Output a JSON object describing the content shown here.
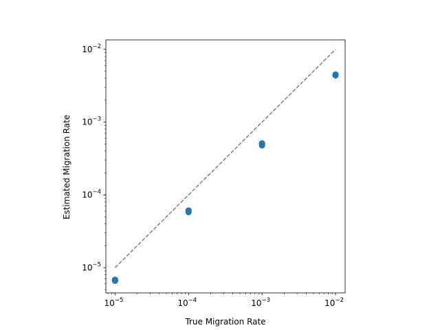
{
  "chart_data": {
    "type": "scatter",
    "title": "",
    "xlabel": "True Migration Rate",
    "ylabel": "Estimated Migration Rate",
    "xscale": "log",
    "yscale": "log",
    "xlim": [
      7.5e-06,
      0.0135
    ],
    "ylim": [
      4.5e-06,
      0.0135
    ],
    "grid": false,
    "legend": "none",
    "x_ticks": [
      {
        "value": 1e-05,
        "base": "10",
        "exp": "−5"
      },
      {
        "value": 0.0001,
        "base": "10",
        "exp": "−4"
      },
      {
        "value": 0.001,
        "base": "10",
        "exp": "−3"
      },
      {
        "value": 0.01,
        "base": "10",
        "exp": "−2"
      }
    ],
    "y_ticks": [
      {
        "value": 1e-05,
        "base": "10",
        "exp": "−5"
      },
      {
        "value": 0.0001,
        "base": "10",
        "exp": "−4"
      },
      {
        "value": 0.001,
        "base": "10",
        "exp": "−3"
      },
      {
        "value": 0.01,
        "base": "10",
        "exp": "−2"
      }
    ],
    "reference_line": {
      "x": [
        1e-05,
        0.01
      ],
      "y": [
        1e-05,
        0.01
      ],
      "style": "dashed",
      "color": "#808080"
    },
    "points": [
      {
        "x": 1e-05,
        "y": 6.6e-06
      },
      {
        "x": 1e-05,
        "y": 6.8e-06
      },
      {
        "x": 0.0001,
        "y": 5.8e-05
      },
      {
        "x": 0.0001,
        "y": 6.1e-05
      },
      {
        "x": 0.001,
        "y": 0.00048
      },
      {
        "x": 0.001,
        "y": 0.00051
      },
      {
        "x": 0.01,
        "y": 0.0044
      },
      {
        "x": 0.01,
        "y": 0.0045
      }
    ],
    "marker_color": "#1f77b4"
  }
}
